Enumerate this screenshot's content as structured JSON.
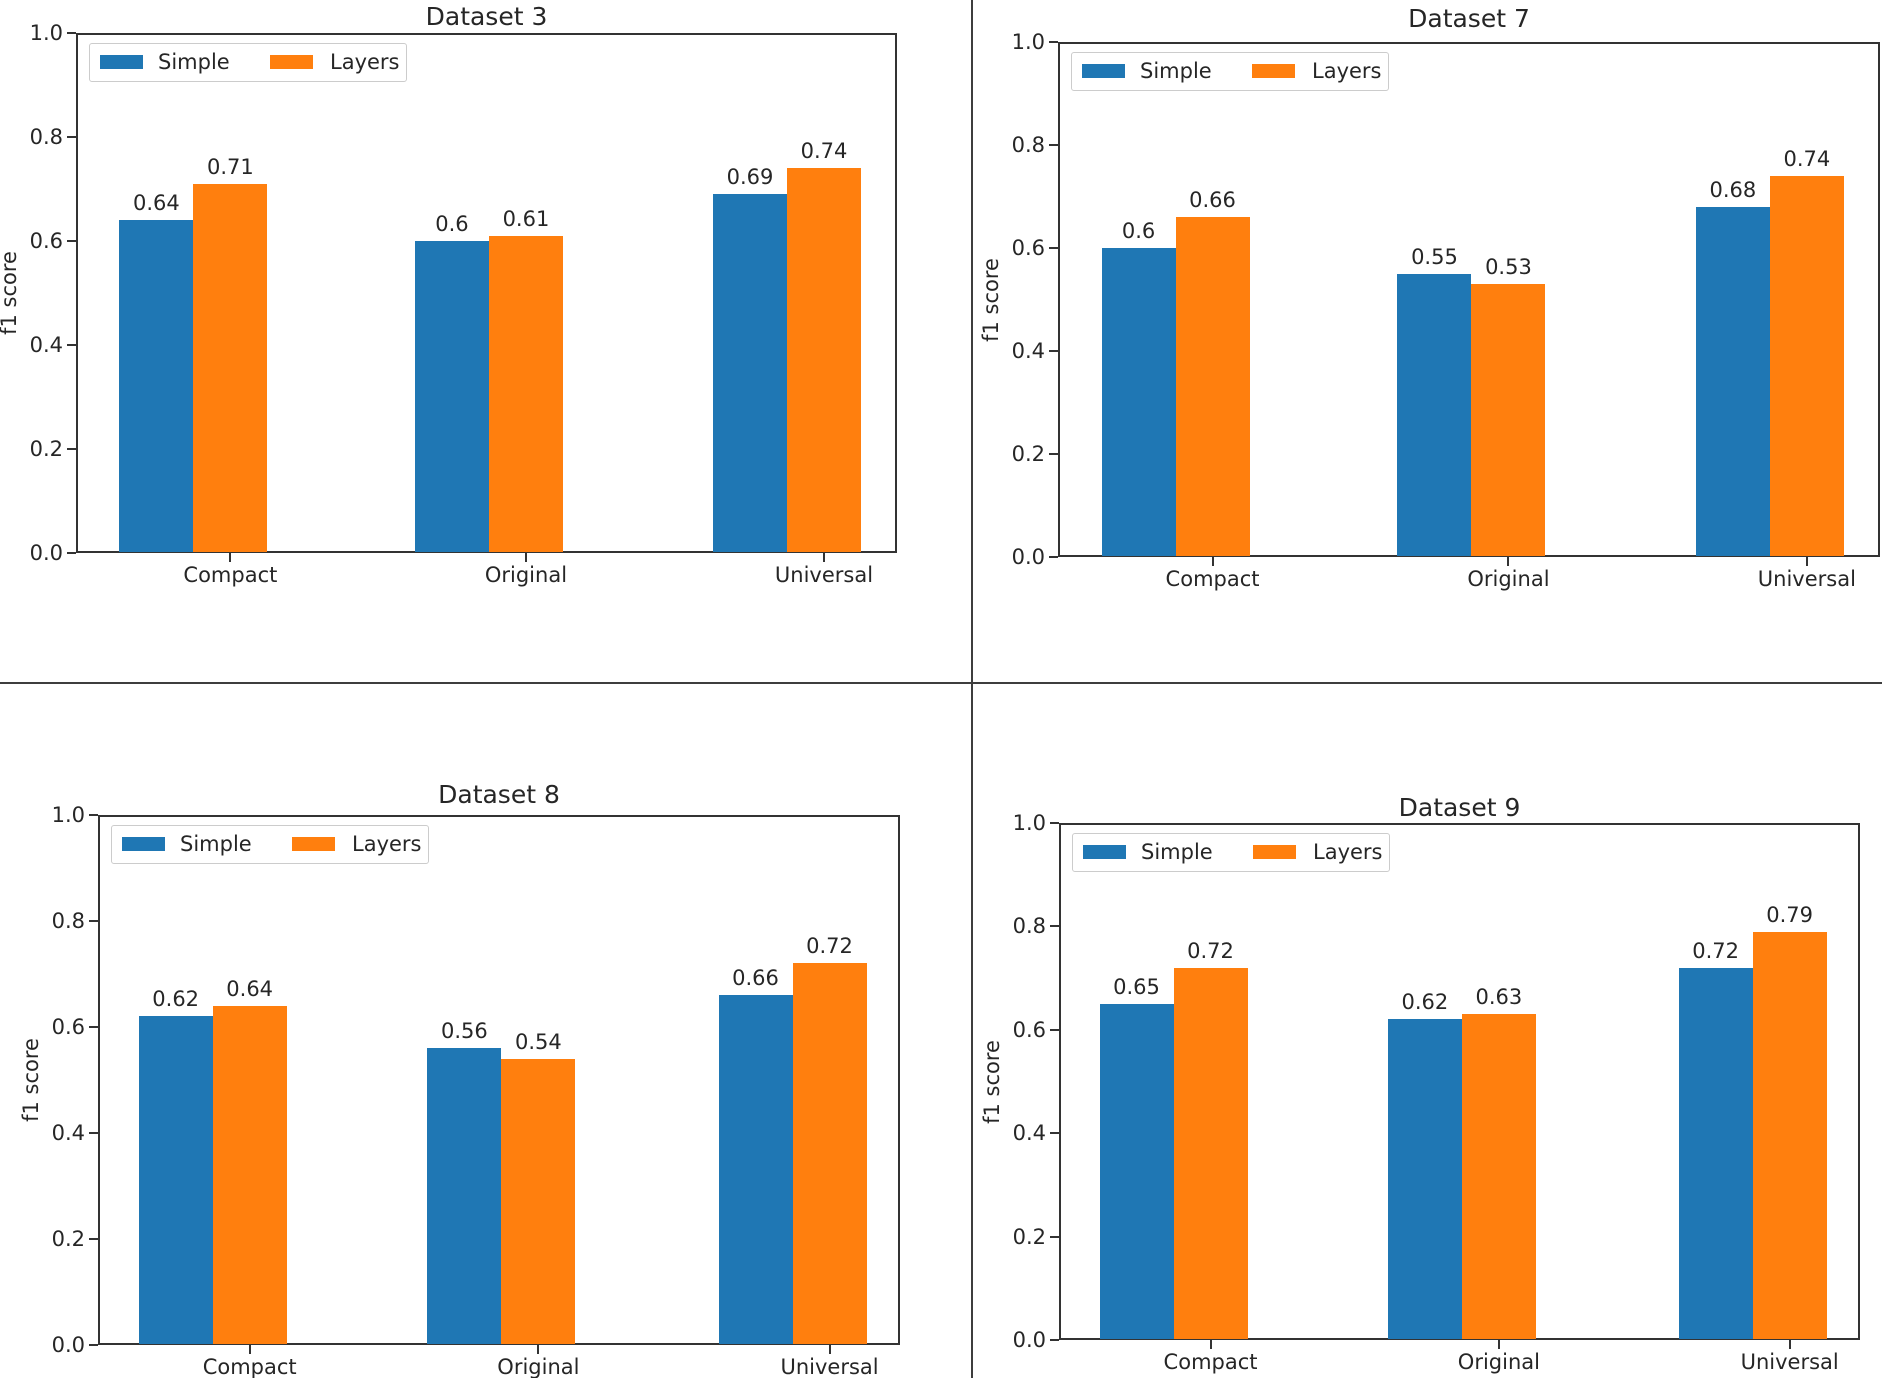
{
  "page": {
    "background": "#ffffff",
    "divider_color": "#3d3d3d"
  },
  "colors": {
    "simple_blue": "#1f77b4",
    "layers_orange": "#ff7f0e",
    "text": "#262626",
    "spine": "#333333"
  },
  "axis": {
    "ylabel": "f1 score",
    "ytick_labels": [
      "0.0",
      "0.2",
      "0.4",
      "0.6",
      "0.8",
      "1.0"
    ],
    "ylim": [
      0.0,
      1.0
    ]
  },
  "legend": {
    "labels": [
      "Simple",
      "Layers"
    ],
    "position": "upper left"
  },
  "chart_data": [
    {
      "type": "bar",
      "title": "Dataset 3",
      "categories": [
        "Compact",
        "Original",
        "Universal"
      ],
      "series": [
        {
          "name": "Simple",
          "values": [
            0.64,
            0.6,
            0.69
          ]
        },
        {
          "name": "Layers",
          "values": [
            0.71,
            0.61,
            0.74
          ]
        }
      ],
      "xlabel": "",
      "ylabel": "f1 score",
      "ylim": [
        0.0,
        1.0
      ],
      "grid": false,
      "legend_position": "upper left"
    },
    {
      "type": "bar",
      "title": "Dataset 7",
      "categories": [
        "Compact",
        "Original",
        "Universal"
      ],
      "series": [
        {
          "name": "Simple",
          "values": [
            0.6,
            0.55,
            0.68
          ]
        },
        {
          "name": "Layers",
          "values": [
            0.66,
            0.53,
            0.74
          ]
        }
      ],
      "xlabel": "",
      "ylabel": "f1 score",
      "ylim": [
        0.0,
        1.0
      ],
      "grid": false,
      "legend_position": "upper left"
    },
    {
      "type": "bar",
      "title": "Dataset 8",
      "categories": [
        "Compact",
        "Original",
        "Universal"
      ],
      "series": [
        {
          "name": "Simple",
          "values": [
            0.62,
            0.56,
            0.66
          ]
        },
        {
          "name": "Layers",
          "values": [
            0.64,
            0.54,
            0.72
          ]
        }
      ],
      "xlabel": "",
      "ylabel": "f1 score",
      "ylim": [
        0.0,
        1.0
      ],
      "grid": false,
      "legend_position": "upper left"
    },
    {
      "type": "bar",
      "title": "Dataset 9",
      "categories": [
        "Compact",
        "Original",
        "Universal"
      ],
      "series": [
        {
          "name": "Simple",
          "values": [
            0.65,
            0.62,
            0.72
          ]
        },
        {
          "name": "Layers",
          "values": [
            0.72,
            0.63,
            0.79
          ]
        }
      ],
      "xlabel": "",
      "ylabel": "f1 score",
      "ylim": [
        0.0,
        1.0
      ],
      "grid": false,
      "legend_position": "upper left"
    }
  ]
}
